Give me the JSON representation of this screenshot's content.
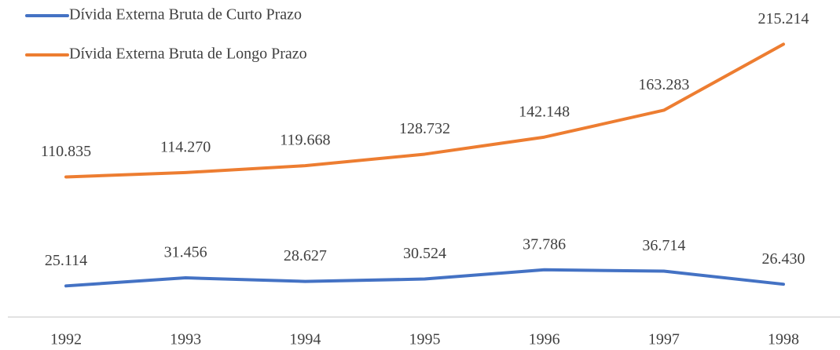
{
  "chart_data": {
    "type": "line",
    "categories": [
      "1992",
      "1993",
      "1994",
      "1995",
      "1996",
      "1997",
      "1998"
    ],
    "series": [
      {
        "name": "Dívida Externa Bruta de Curto Prazo",
        "color": "#4472c4",
        "values": [
          25114,
          31456,
          28627,
          30524,
          37786,
          36714,
          26430
        ],
        "value_labels": [
          "25.114",
          "31.456",
          "28.627",
          "30.524",
          "37.786",
          "36.714",
          "26.430"
        ]
      },
      {
        "name": "Dívida Externa Bruta de Longo Prazo",
        "color": "#ed7d31",
        "values": [
          110835,
          114270,
          119668,
          128732,
          142148,
          163283,
          215214
        ],
        "value_labels": [
          "110.835",
          "114.270",
          "119.668",
          "128.732",
          "142.148",
          "163.283",
          "215.214"
        ]
      }
    ],
    "ylim": [
      0,
      250000
    ],
    "legend": "top-left"
  }
}
